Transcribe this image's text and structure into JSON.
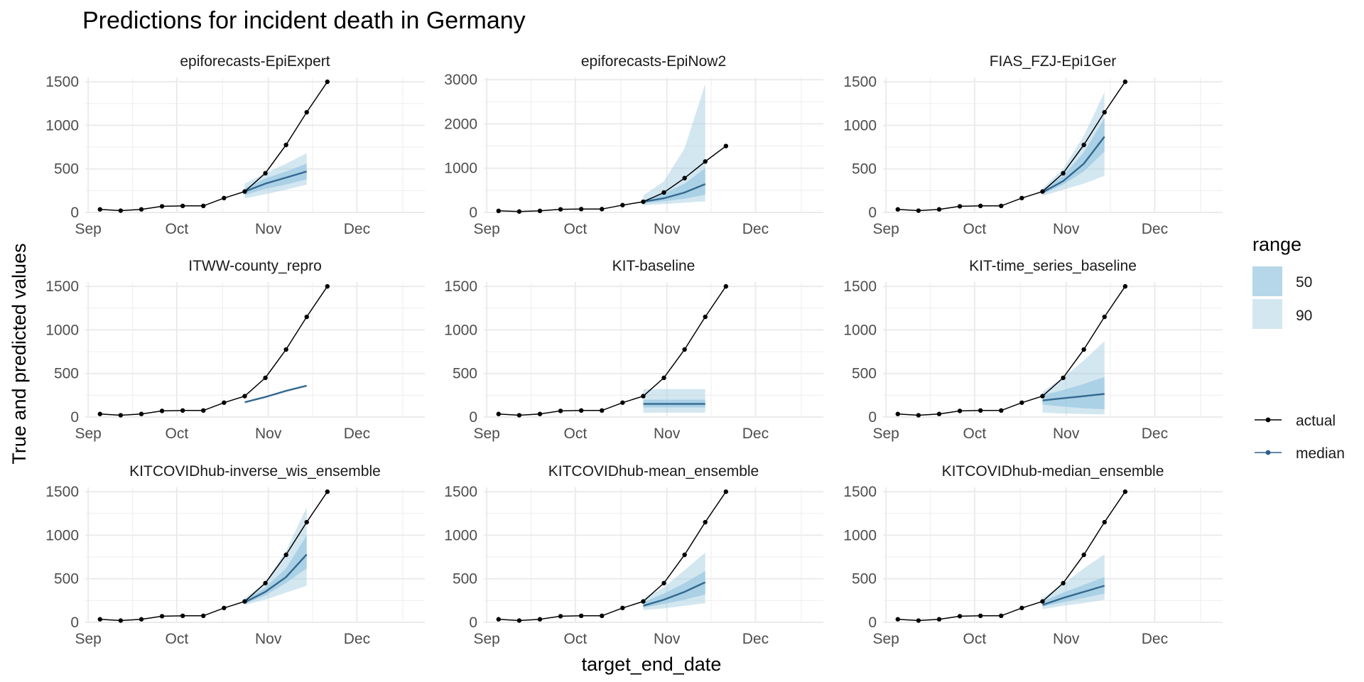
{
  "chart_data": {
    "type": "line",
    "title": "Predictions for incident death in Germany",
    "xlabel": "target_end_date",
    "ylabel": "True and predicted values",
    "x_ticks": [
      {
        "label": "Sep",
        "date": "2020-09-01"
      },
      {
        "label": "Oct",
        "date": "2020-10-01"
      },
      {
        "label": "Nov",
        "date": "2020-11-01"
      },
      {
        "label": "Dec",
        "date": "2020-12-01"
      }
    ],
    "xlim": [
      "2020-08-31",
      "2020-12-24"
    ],
    "grid": true,
    "legend": {
      "position": "right",
      "range_title": "range",
      "range_items": [
        {
          "label": "50",
          "color": "#9ecae1",
          "opacity": 0.75
        },
        {
          "label": "90",
          "color": "#9ecae1",
          "opacity": 0.45
        }
      ],
      "line_items": [
        {
          "label": "actual",
          "color": "#000000",
          "points": true
        },
        {
          "label": "median",
          "color": "#2d5f8b",
          "points": true
        }
      ]
    },
    "colors": {
      "actual": "#000000",
      "median": "#33688f",
      "band": "#9ecae1"
    },
    "actual": {
      "x": [
        "2020-09-05",
        "2020-09-12",
        "2020-09-19",
        "2020-09-26",
        "2020-10-03",
        "2020-10-10",
        "2020-10-17",
        "2020-10-24",
        "2020-10-31",
        "2020-11-07",
        "2020-11-14",
        "2020-11-21"
      ],
      "y": [
        35,
        20,
        35,
        70,
        75,
        75,
        165,
        240,
        450,
        775,
        1150,
        1500
      ]
    },
    "forecast_x": [
      "2020-10-24",
      "2020-10-31",
      "2020-11-07",
      "2020-11-14"
    ],
    "panels": [
      {
        "name": "epiforecasts-EpiExpert",
        "ylim": [
          0,
          1550
        ],
        "yticks": [
          0,
          500,
          1000,
          1500
        ],
        "median": [
          240,
          330,
          400,
          470
        ],
        "q50": [
          [
            200,
            280
          ],
          [
            270,
            390
          ],
          [
            320,
            470
          ],
          [
            380,
            560
          ]
        ],
        "q90": [
          [
            160,
            330
          ],
          [
            210,
            450
          ],
          [
            260,
            560
          ],
          [
            320,
            680
          ]
        ]
      },
      {
        "name": "epiforecasts-EpiNow2",
        "ylim": [
          0,
          3050
        ],
        "yticks": [
          0,
          1000,
          2000,
          3000
        ],
        "median": [
          240,
          320,
          450,
          640
        ],
        "q50": [
          [
            200,
            280
          ],
          [
            250,
            430
          ],
          [
            310,
            650
          ],
          [
            400,
            1000
          ]
        ],
        "q90": [
          [
            160,
            380
          ],
          [
            190,
            700
          ],
          [
            220,
            1450
          ],
          [
            250,
            2900
          ]
        ]
      },
      {
        "name": "FIAS_FZJ-Epi1Ger",
        "ylim": [
          0,
          1550
        ],
        "yticks": [
          0,
          500,
          1000,
          1500
        ],
        "median": [
          230,
          360,
          560,
          870
        ],
        "q50": [
          [
            210,
            260
          ],
          [
            320,
            420
          ],
          [
            470,
            690
          ],
          [
            700,
            1080
          ]
        ],
        "q90": [
          [
            190,
            280
          ],
          [
            260,
            500
          ],
          [
            330,
            880
          ],
          [
            420,
            1380
          ]
        ]
      },
      {
        "name": "ITWW-county_repro",
        "ylim": [
          0,
          1550
        ],
        "yticks": [
          0,
          500,
          1000,
          1500
        ],
        "median": [
          170,
          230,
          300,
          360
        ],
        "q50": null,
        "q90": null
      },
      {
        "name": "KIT-baseline",
        "ylim": [
          0,
          1550
        ],
        "yticks": [
          0,
          500,
          1000,
          1500
        ],
        "median": [
          150,
          150,
          150,
          150
        ],
        "q50": [
          [
            110,
            200
          ],
          [
            110,
            200
          ],
          [
            110,
            200
          ],
          [
            110,
            200
          ]
        ],
        "q90": [
          [
            50,
            320
          ],
          [
            50,
            320
          ],
          [
            50,
            320
          ],
          [
            50,
            320
          ]
        ]
      },
      {
        "name": "KIT-time_series_baseline",
        "ylim": [
          0,
          1550
        ],
        "yticks": [
          0,
          500,
          1000,
          1500
        ],
        "median": [
          190,
          215,
          240,
          265
        ],
        "q50": [
          [
            140,
            250
          ],
          [
            120,
            310
          ],
          [
            100,
            380
          ],
          [
            90,
            460
          ]
        ],
        "q90": [
          [
            50,
            290
          ],
          [
            40,
            450
          ],
          [
            35,
            650
          ],
          [
            30,
            870
          ]
        ]
      },
      {
        "name": "KITCOVIDhub-inverse_wis_ensemble",
        "ylim": [
          0,
          1550
        ],
        "yticks": [
          0,
          500,
          1000,
          1500
        ],
        "median": [
          230,
          350,
          520,
          780
        ],
        "q50": [
          [
            210,
            260
          ],
          [
            310,
            400
          ],
          [
            450,
            620
          ],
          [
            620,
            1000
          ]
        ],
        "q90": [
          [
            200,
            280
          ],
          [
            260,
            460
          ],
          [
            340,
            820
          ],
          [
            420,
            1320
          ]
        ]
      },
      {
        "name": "KITCOVIDhub-mean_ensemble",
        "ylim": [
          0,
          1550
        ],
        "yticks": [
          0,
          500,
          1000,
          1500
        ],
        "median": [
          190,
          260,
          350,
          460
        ],
        "q50": [
          [
            170,
            230
          ],
          [
            210,
            330
          ],
          [
            260,
            450
          ],
          [
            320,
            590
          ]
        ],
        "q90": [
          [
            140,
            270
          ],
          [
            160,
            400
          ],
          [
            190,
            600
          ],
          [
            220,
            800
          ]
        ]
      },
      {
        "name": "KITCOVIDhub-median_ensemble",
        "ylim": [
          0,
          1550
        ],
        "yticks": [
          0,
          500,
          1000,
          1500
        ],
        "median": [
          200,
          280,
          350,
          420
        ],
        "q50": [
          [
            180,
            240
          ],
          [
            230,
            340
          ],
          [
            280,
            430
          ],
          [
            330,
            520
          ]
        ],
        "q90": [
          [
            150,
            280
          ],
          [
            190,
            440
          ],
          [
            220,
            620
          ],
          [
            260,
            780
          ]
        ]
      }
    ]
  }
}
